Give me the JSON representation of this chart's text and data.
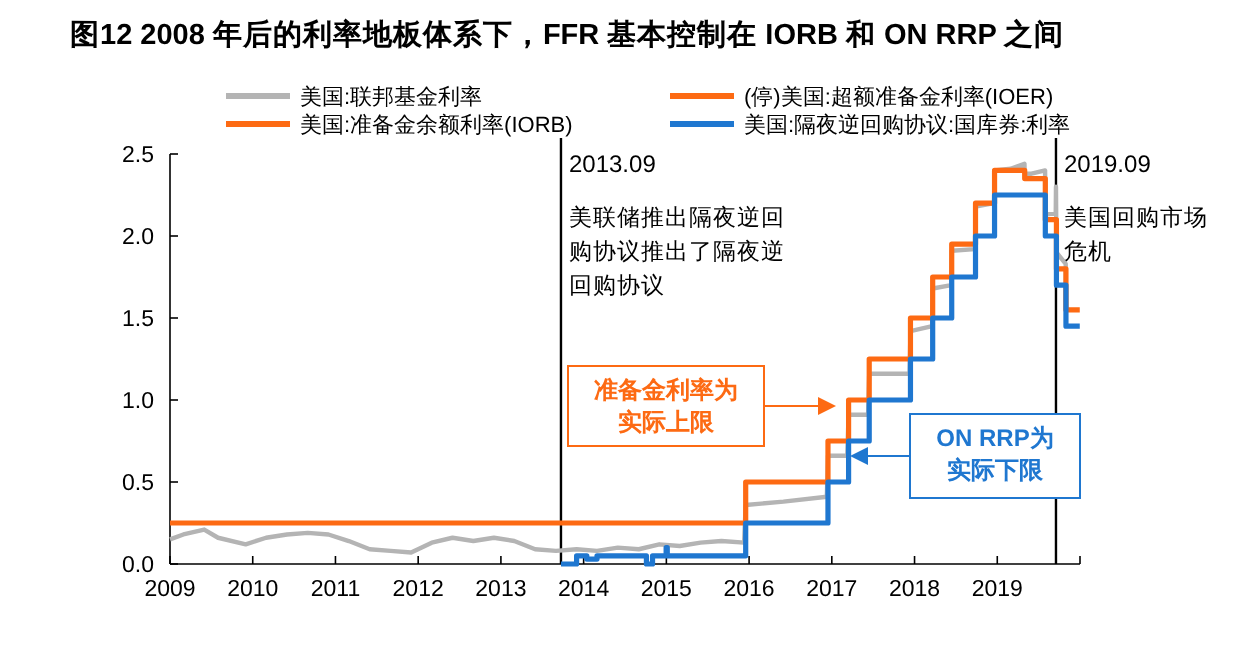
{
  "chart_data": {
    "type": "line",
    "title": "图12 2008 年后的利率地板体系下，FFR 基本控制在 IORB 和 ON RRP 之间",
    "xlim": [
      "2009-01-01",
      "2020-01-01"
    ],
    "xticks": [
      "2009",
      "2010",
      "2011",
      "2012",
      "2013",
      "2014",
      "2015",
      "2016",
      "2017",
      "2018",
      "2019"
    ],
    "ylim": [
      0,
      2.5
    ],
    "yticks": [
      {
        "value": 0,
        "label": "0.0"
      },
      {
        "value": 0.5,
        "label": "0.5"
      },
      {
        "value": 1,
        "label": "1.0"
      },
      {
        "value": 1.5,
        "label": "1.5"
      },
      {
        "value": 2,
        "label": "2.0"
      },
      {
        "value": 2.5,
        "label": "2.5"
      }
    ],
    "legend": "top",
    "grid": false,
    "marker": "none",
    "line_style": "solid",
    "series": [
      {
        "name": "美国:联邦基金利率",
        "color": "#b4b4b4",
        "x": [
          "2009-01-01",
          "2009-03-01",
          "2009-06-01",
          "2009-08-01",
          "2009-12-01",
          "2010-03-01",
          "2010-06-01",
          "2010-09-01",
          "2010-12-01",
          "2011-03-01",
          "2011-06-01",
          "2011-09-01",
          "2011-12-01",
          "2012-03-01",
          "2012-06-01",
          "2012-09-01",
          "2012-12-01",
          "2013-03-01",
          "2013-06-01",
          "2013-09-01",
          "2013-12-01",
          "2014-03-01",
          "2014-06-01",
          "2014-09-01",
          "2014-12-01",
          "2015-03-01",
          "2015-06-01",
          "2015-09-01",
          "2015-12-10",
          "2015-12-17",
          "2016-06-01",
          "2016-12-10",
          "2016-12-15",
          "2017-03-10",
          "2017-03-16",
          "2017-06-10",
          "2017-06-15",
          "2017-12-10",
          "2017-12-14",
          "2018-03-20",
          "2018-03-22",
          "2018-06-12",
          "2018-06-14",
          "2018-09-25",
          "2018-09-27",
          "2018-12-18",
          "2018-12-20",
          "2019-03-01",
          "2019-05-01",
          "2019-05-02",
          "2019-06-01",
          "2019-07-31",
          "2019-08-01",
          "2019-09-16",
          "2019-09-17",
          "2019-09-19",
          "2019-10-30",
          "2019-10-31"
        ],
        "values": [
          0.15,
          0.18,
          0.21,
          0.16,
          0.12,
          0.16,
          0.18,
          0.19,
          0.18,
          0.14,
          0.09,
          0.08,
          0.07,
          0.13,
          0.16,
          0.14,
          0.16,
          0.14,
          0.09,
          0.08,
          0.09,
          0.08,
          0.1,
          0.09,
          0.12,
          0.11,
          0.13,
          0.14,
          0.13,
          0.36,
          0.38,
          0.41,
          0.66,
          0.66,
          0.91,
          0.91,
          1.16,
          1.16,
          1.42,
          1.45,
          1.68,
          1.7,
          1.91,
          1.92,
          2.18,
          2.2,
          2.4,
          2.41,
          2.44,
          2.38,
          2.38,
          2.4,
          2.13,
          2.14,
          2.3,
          1.9,
          1.83,
          1.55
        ]
      },
      {
        "name": "(停)美国:超额准备金利率(IOER)",
        "type": "step",
        "color": "#fd6a13",
        "x": [
          "2009-01-01",
          "2015-12-17",
          "2016-12-15",
          "2017-03-16",
          "2017-06-15",
          "2017-12-14",
          "2018-03-22",
          "2018-06-14",
          "2018-09-27",
          "2018-12-20",
          "2019-05-02",
          "2019-08-01",
          "2019-09-19",
          "2019-10-31",
          "2019-12-31"
        ],
        "values": [
          0.25,
          0.5,
          0.75,
          1.0,
          1.25,
          1.5,
          1.75,
          1.95,
          2.2,
          2.4,
          2.35,
          2.1,
          1.8,
          1.55,
          1.55
        ]
      },
      {
        "name": "美国:准备金余额利率(IORB)",
        "color": "#fd6a13"
      },
      {
        "name": "美国:隔夜逆回购协议:国库券:利率",
        "type": "step",
        "color": "#1f77d0",
        "x": [
          "2013-09-23",
          "2013-12-01",
          "2014-01-15",
          "2014-03-01",
          "2014-10-01",
          "2014-10-05",
          "2014-11-01",
          "2014-12-01",
          "2014-12-31",
          "2015-01-05",
          "2015-12-17",
          "2016-12-15",
          "2017-03-16",
          "2017-06-15",
          "2017-12-14",
          "2018-03-22",
          "2018-06-14",
          "2018-09-27",
          "2018-12-20",
          "2019-08-01",
          "2019-09-19",
          "2019-10-31",
          "2019-12-31"
        ],
        "values": [
          0.0,
          0.05,
          0.03,
          0.05,
          0.05,
          0.0,
          0.05,
          0.05,
          0.1,
          0.05,
          0.25,
          0.5,
          0.75,
          1.0,
          1.25,
          1.5,
          1.75,
          2.0,
          2.25,
          2.0,
          1.7,
          1.45,
          1.45
        ]
      }
    ],
    "ref_lines": [
      {
        "axis": "x",
        "value": "2013-09-23",
        "label": "2013.09",
        "color": "#000000"
      },
      {
        "axis": "x",
        "value": "2019-09-17",
        "label": "2019.09",
        "color": "#000000"
      }
    ],
    "annotations": [
      {
        "text": "美联储推出隔夜逆回购协议推出了隔夜逆回购协议",
        "x": "2013-09-23",
        "y": 2.2
      },
      {
        "text": "美国回购市场危机",
        "x": "2019-09-17",
        "y": 2.2
      },
      "准备金利率为实际上限",
      "ON RRP为实际下限"
    ]
  }
}
